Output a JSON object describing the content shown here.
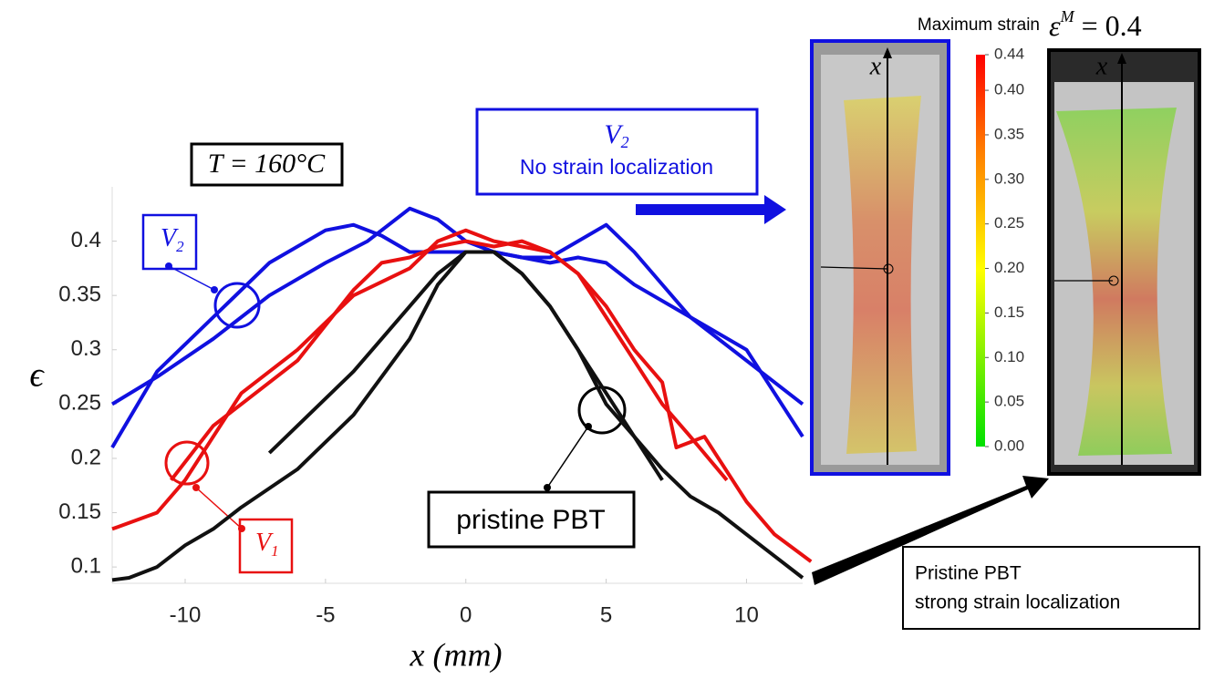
{
  "chart_data": {
    "type": "line",
    "xlabel": "x (mm)",
    "ylabel": "ϵ",
    "xlim": [
      -12.6,
      12.0
    ],
    "ylim": [
      0.085,
      0.45
    ],
    "xticks": [
      -10,
      -5,
      0,
      5,
      10
    ],
    "yticks": [
      0.1,
      0.15,
      0.2,
      0.25,
      0.3,
      0.35,
      0.4
    ],
    "series": [
      {
        "color": "#1010e0",
        "x": [
          -12.6,
          -11,
          -9,
          -7,
          -5,
          -3.5,
          -2,
          -1,
          0,
          1,
          2,
          3,
          4,
          5,
          6,
          8,
          10,
          12
        ],
        "values": [
          0.25,
          0.275,
          0.31,
          0.35,
          0.38,
          0.4,
          0.43,
          0.42,
          0.4,
          0.39,
          0.385,
          0.385,
          0.4,
          0.415,
          0.39,
          0.33,
          0.29,
          0.25
        ]
      },
      {
        "color": "#1010e0",
        "x": [
          -12.6,
          -11,
          -9,
          -7,
          -5,
          -4,
          -3,
          -2,
          -1,
          0,
          1,
          2,
          3,
          4,
          5,
          6,
          8,
          10,
          12
        ],
        "values": [
          0.21,
          0.28,
          0.33,
          0.38,
          0.41,
          0.415,
          0.405,
          0.39,
          0.39,
          0.39,
          0.39,
          0.385,
          0.38,
          0.385,
          0.38,
          0.36,
          0.33,
          0.3,
          0.22
        ]
      },
      {
        "color": "#e81010",
        "x": [
          -12.6,
          -11,
          -10,
          -9,
          -8,
          -6,
          -4,
          -2,
          -1,
          0,
          1,
          2,
          3,
          4,
          5,
          6,
          7,
          7.5,
          8,
          8.5,
          9,
          10,
          11,
          12.3
        ],
        "values": [
          0.135,
          0.15,
          0.18,
          0.22,
          0.26,
          0.3,
          0.35,
          0.375,
          0.4,
          0.41,
          0.4,
          0.395,
          0.39,
          0.37,
          0.34,
          0.3,
          0.27,
          0.21,
          0.215,
          0.22,
          0.2,
          0.16,
          0.13,
          0.105
        ]
      },
      {
        "color": "#e81010",
        "x": [
          -10.5,
          -9,
          -8,
          -6,
          -4,
          -3,
          -2,
          -1,
          0,
          1,
          2,
          3,
          4,
          5,
          6,
          7,
          8,
          9.3
        ],
        "values": [
          0.18,
          0.23,
          0.25,
          0.29,
          0.355,
          0.38,
          0.385,
          0.395,
          0.4,
          0.395,
          0.4,
          0.39,
          0.37,
          0.33,
          0.29,
          0.25,
          0.22,
          0.18
        ]
      },
      {
        "color": "#111111",
        "x": [
          -12.6,
          -12,
          -11,
          -10,
          -9,
          -8,
          -6,
          -4,
          -2,
          -1,
          0,
          1,
          2,
          3,
          4,
          5,
          6,
          7,
          8,
          9,
          10,
          11,
          12
        ],
        "values": [
          0.088,
          0.09,
          0.1,
          0.12,
          0.135,
          0.155,
          0.19,
          0.24,
          0.31,
          0.36,
          0.39,
          0.39,
          0.37,
          0.34,
          0.3,
          0.26,
          0.22,
          0.19,
          0.165,
          0.15,
          0.13,
          0.11,
          0.09
        ]
      },
      {
        "color": "#111111",
        "x": [
          -7,
          -6,
          -4,
          -2,
          -1,
          0,
          1,
          2,
          3,
          4,
          5,
          6,
          7
        ],
        "values": [
          0.205,
          0.23,
          0.28,
          0.34,
          0.37,
          0.39,
          0.39,
          0.37,
          0.34,
          0.3,
          0.25,
          0.22,
          0.18
        ]
      }
    ]
  },
  "annotations": {
    "temperature": "T = 160°C",
    "v2_box": {
      "text": "V",
      "sub": "2",
      "caption": "No strain localization"
    },
    "v2_label": {
      "text": "V",
      "sub": "2"
    },
    "v1_label": {
      "text": "V",
      "sub": "1"
    },
    "pristine_label": "pristine PBT",
    "pristine_box": {
      "line1": "Pristine PBT",
      "line2": "strong strain localization"
    },
    "specimen_axis_1": "x",
    "specimen_axis_2": "x"
  },
  "colorbar": {
    "title": "Maximum strain",
    "symbol": "ε",
    "sup": "M",
    "equation": " = 0.4",
    "lim": [
      0,
      0.44
    ],
    "ticks": [
      {
        "value": 0,
        "label": "0.00"
      },
      {
        "value": 0.05,
        "label": "0.05"
      },
      {
        "value": 0.1,
        "label": "0.10"
      },
      {
        "value": 0.15,
        "label": "0.15"
      },
      {
        "value": 0.2,
        "label": "0.20"
      },
      {
        "value": 0.25,
        "label": "0.25"
      },
      {
        "value": 0.3,
        "label": "0.30"
      },
      {
        "value": 0.35,
        "label": "0.35"
      },
      {
        "value": 0.4,
        "label": "0.40"
      },
      {
        "value": 0.44,
        "label": "0.44"
      }
    ]
  }
}
